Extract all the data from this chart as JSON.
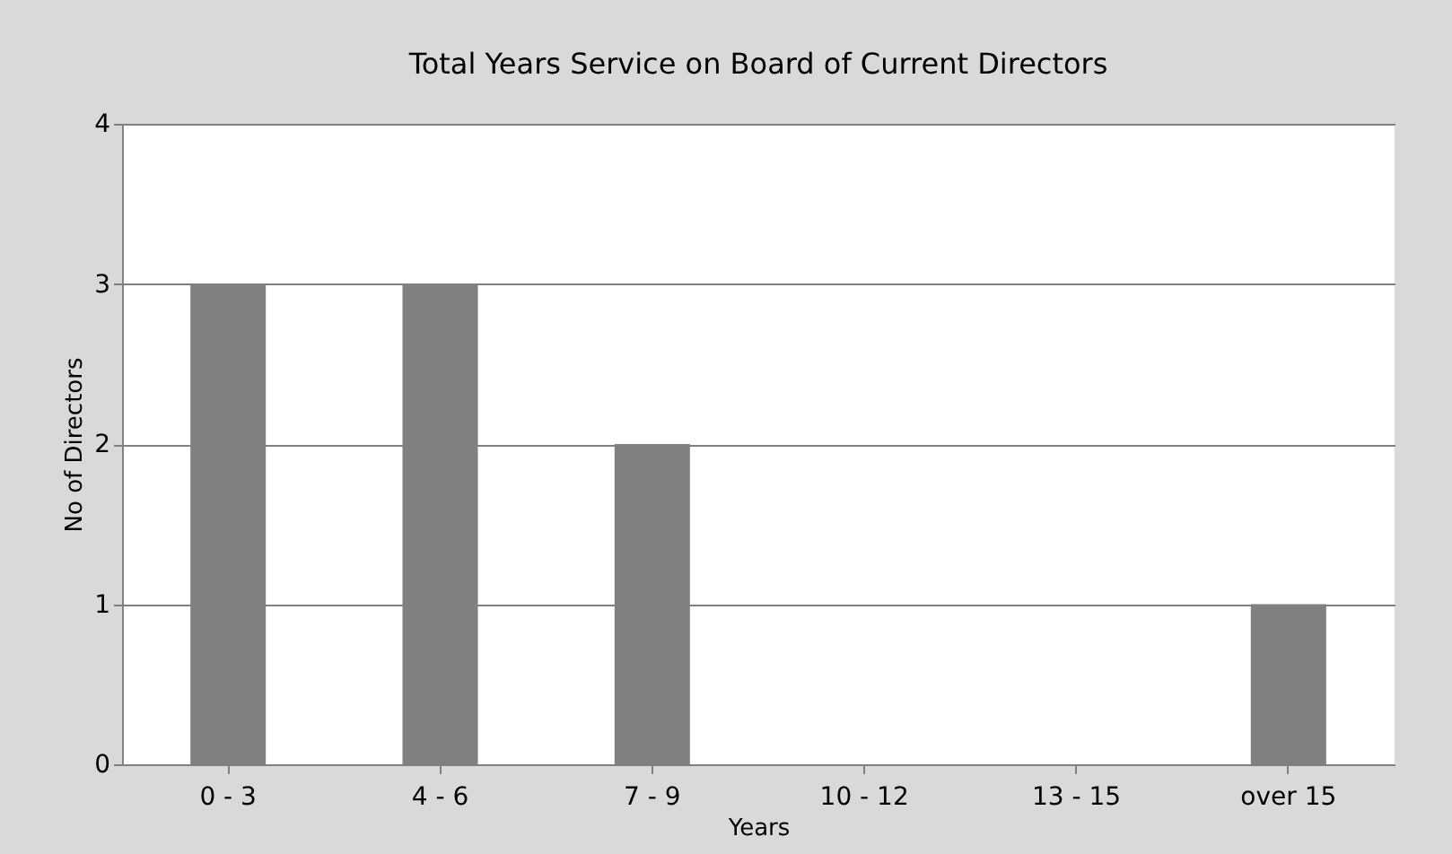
{
  "chart_data": {
    "type": "bar",
    "title": "Total Years Service on Board of Current Directors",
    "xlabel": "Years",
    "ylabel": "No of Directors",
    "categories": [
      "0 - 3",
      "4 - 6",
      "7 - 9",
      "10 - 12",
      "13 - 15",
      "over 15"
    ],
    "values": [
      3,
      3,
      2,
      0,
      0,
      1
    ],
    "color": "#808080",
    "ylim": [
      0,
      4
    ],
    "yticks": [
      0,
      1,
      2,
      3,
      4
    ],
    "grid": "y"
  }
}
